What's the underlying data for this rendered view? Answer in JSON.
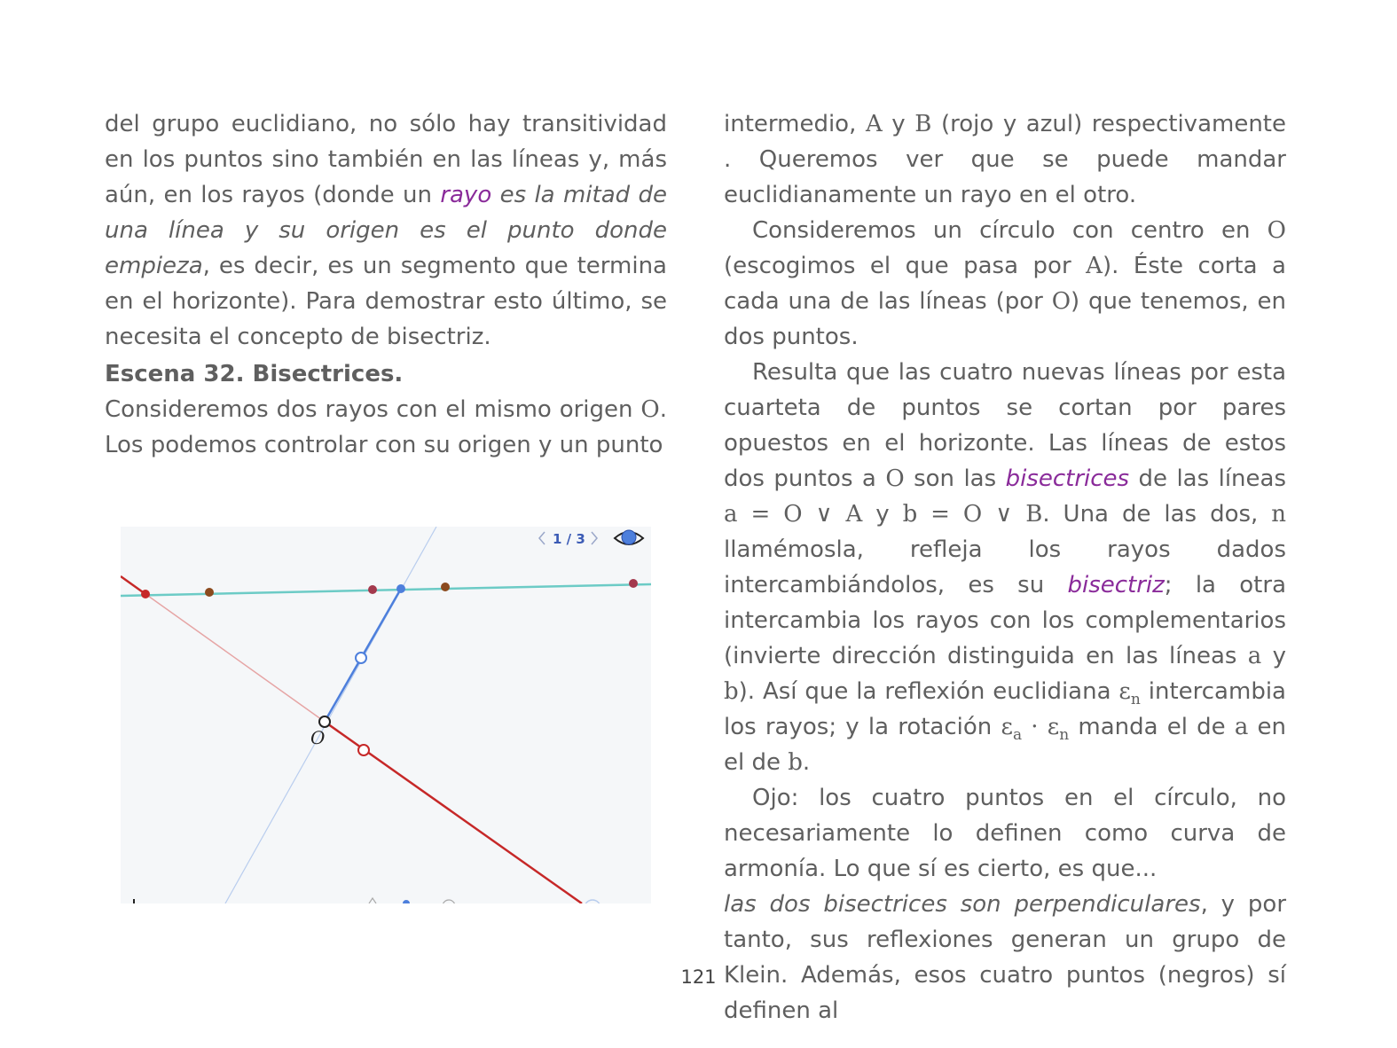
{
  "left": {
    "p1_a": "del grupo euclidiano, no sólo hay transitividad en los puntos sino también en las líneas y, más aún, en los rayos (donde un ",
    "p1_rayo": "rayo",
    "p1_def": " es la mitad de una línea y su origen es el punto donde empieza",
    "p1_b": ", es decir, es un segmento que termina en el horizonte). Para demostrar esto último, se necesita el concepto de bisectriz.",
    "heading": "Escena 32. Bisectrices.",
    "p2_a": "Consideremos dos rayos con el mismo origen ",
    "p2_O": "O",
    "p2_b": ". Los podemos controlar con su origen y un punto"
  },
  "figure": {
    "page_indicator": "1 / 3",
    "prev_icon": "chevron-left-icon",
    "next_icon": "chevron-right-icon",
    "visibility_icon": "eye-icon",
    "origin_label": "O",
    "colors": {
      "teal_line": "#6ccbc6",
      "blue_ray": "#4d7fdc",
      "red_ray": "#c62828",
      "faint_red": "#e6a5a5",
      "faint_blue": "#b9cdee",
      "brown_point": "#8b4a1e",
      "maroon_point": "#a3394d"
    }
  },
  "right": {
    "p1_a": "intermedio, ",
    "p1_A": "A",
    "p1_y": " y ",
    "p1_B": "B",
    "p1_b": " (rojo y azul) respectivamente . Queremos ver que se puede mandar euclidianamente un rayo en el otro.",
    "p2_a": "Consideremos un círculo con centro en ",
    "p2_O": "O",
    "p2_b": " (escogimos el que pasa por ",
    "p2_A": "A",
    "p2_c": "). Éste corta a cada una de las líneas (por ",
    "p2_O2": "O",
    "p2_d": ") que tenemos, en dos puntos.",
    "p3_a": "Resulta que las cuatro nuevas líneas por esta cuarteta de puntos se cortan por pares opuestos en el horizonte. Las líneas de estos dos puntos a ",
    "p3_O": "O",
    "p3_b": " son las ",
    "p3_bis": "bisectrices",
    "p3_c": " de las líneas ",
    "p3_eq1": "a = O ∨ A",
    "p3_d": " y ",
    "p3_eq2": "b = O ∨ B",
    "p3_e": ". Una de las dos, ",
    "p3_n": "n",
    "p3_f": " llamémosla, refleja los rayos dados intercambiándolos, es su ",
    "p3_bis2": "bisectriz",
    "p3_g": "; la otra intercambia los rayos con los complementarios (invierte dirección distinguida en las líneas ",
    "p3_a_var": "a",
    "p3_h": " y ",
    "p3_b_var": "b",
    "p3_i": "). Así que la reflexión euclidiana ",
    "p3_eps": "ε",
    "p3_sub_n": "n",
    "p3_j": " intercambia los rayos; y la rotación ",
    "p3_eps_a": "ε",
    "p3_sub_a": "a",
    "p3_dot": " · ",
    "p3_eps_n": "ε",
    "p3_sub_n2": "n",
    "p3_k": " manda el de ",
    "p3_a_var2": "a",
    "p3_l": " en el de ",
    "p3_b_var2": "b",
    "p3_m": ".",
    "p4": "Ojo: los cuatro puntos en el círculo, no necesariamente lo definen como curva de armonía. Lo que sí es cierto, es que...",
    "p5_ital": "las dos bisectrices son perpendiculares",
    "p5_rest": ", y por tanto, sus reflexiones generan un grupo de Klein. Además, esos cuatro puntos (negros) sí definen al"
  },
  "page_number": "121"
}
